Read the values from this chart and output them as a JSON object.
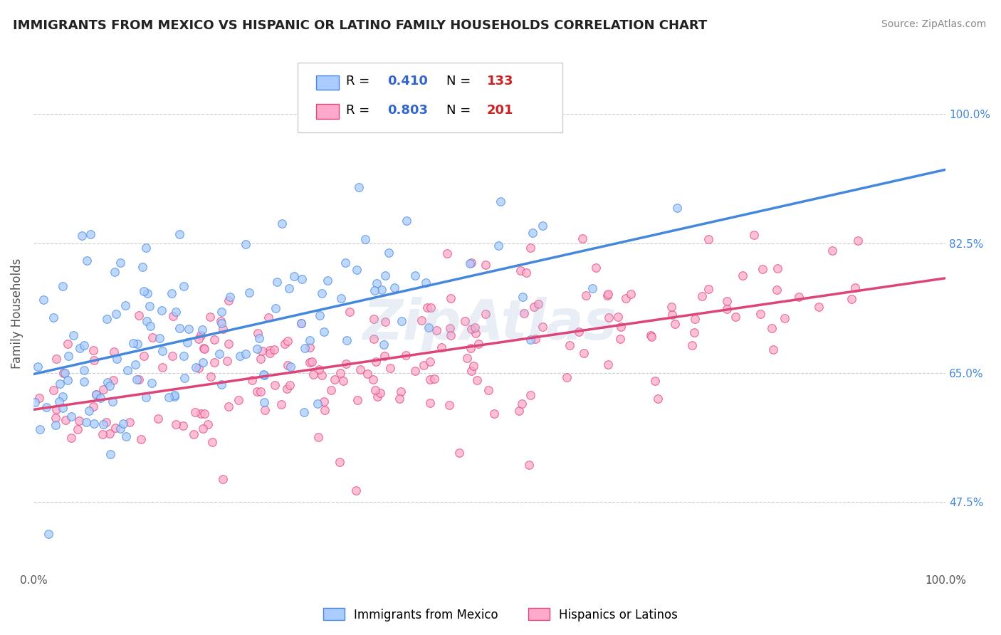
{
  "title": "IMMIGRANTS FROM MEXICO VS HISPANIC OR LATINO FAMILY HOUSEHOLDS CORRELATION CHART",
  "source_text": "Source: ZipAtlas.com",
  "ylabel": "Family Households",
  "xlim": [
    0.0,
    1.0
  ],
  "ylim": [
    0.38,
    1.08
  ],
  "yticks": [
    0.475,
    0.65,
    0.825,
    1.0
  ],
  "ytick_labels": [
    "47.5%",
    "65.0%",
    "82.5%",
    "100.0%"
  ],
  "xtick_labels": [
    "0.0%",
    "100.0%"
  ],
  "xticks": [
    0.0,
    1.0
  ],
  "watermark": "ZipAtlas",
  "blue_color": "#4488dd",
  "pink_color": "#dd4477",
  "blue_scatter_color": "#aaccff",
  "pink_scatter_color": "#ffaacc",
  "blue_line_start_x": 0.0,
  "blue_line_start_y": 0.648,
  "blue_line_end_x": 1.0,
  "blue_line_end_y": 0.925,
  "pink_line_start_x": 0.0,
  "pink_line_start_y": 0.6,
  "pink_line_end_x": 1.0,
  "pink_line_end_y": 0.778,
  "background_color": "#ffffff",
  "grid_color": "#cccccc",
  "title_color": "#222222",
  "legend_value_color": "#3366cc",
  "legend_N_value_color": "#cc2222",
  "n_blue": 133,
  "n_pink": 201,
  "blue_noise": 0.075,
  "pink_noise": 0.055
}
